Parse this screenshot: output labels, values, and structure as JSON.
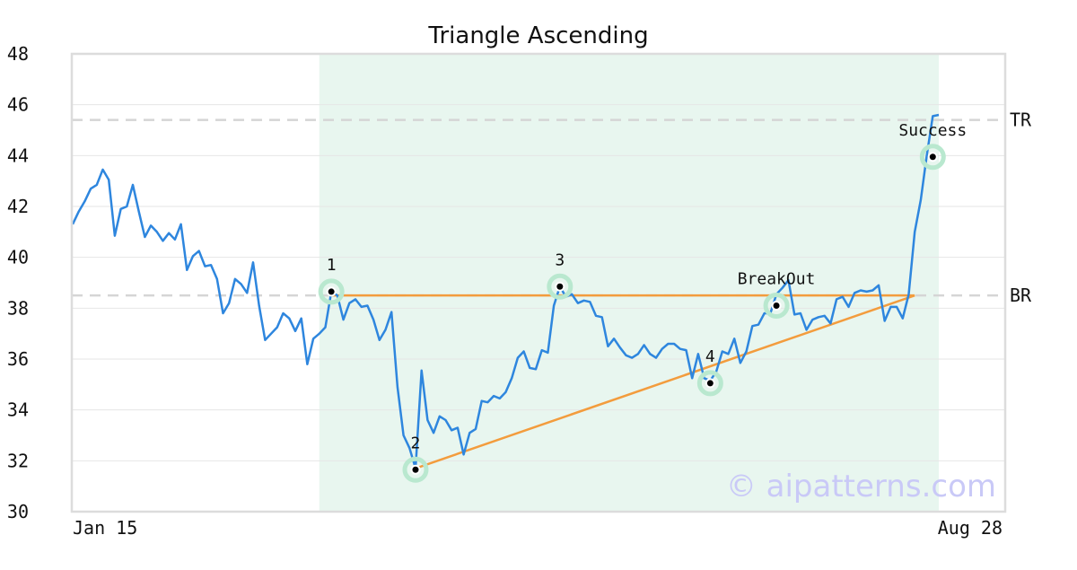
{
  "chart_data": {
    "type": "line",
    "title": "Triangle Ascending",
    "x_tick_labels": [
      "Jan 15",
      "Aug 28"
    ],
    "ylim": [
      30,
      48
    ],
    "y_ticks": [
      30,
      32,
      34,
      36,
      38,
      40,
      42,
      44,
      46,
      48
    ],
    "grid": true,
    "line_color": "#2e86de",
    "trendline_color": "#f39c3d",
    "highlight_color": "#e8f6ef",
    "series": [
      {
        "values": [
          41.3,
          41.8,
          42.2,
          42.7,
          42.85,
          43.45,
          43.05,
          40.85,
          41.9,
          42.0,
          42.85,
          41.8,
          40.8,
          41.25,
          41.0,
          40.65,
          40.95,
          40.7,
          41.3,
          39.5,
          40.05,
          40.25,
          39.65,
          39.7,
          39.15,
          37.8,
          38.2,
          39.15,
          38.95,
          38.6,
          39.8,
          38.1,
          36.75,
          37.0,
          37.25,
          37.8,
          37.6,
          37.1,
          37.6,
          35.8,
          36.8,
          37.0,
          37.25,
          38.65,
          38.5,
          37.55,
          38.2,
          38.35,
          38.05,
          38.1,
          37.55,
          36.75,
          37.15,
          37.85,
          34.9,
          33.0,
          32.5,
          31.7,
          35.55,
          33.6,
          33.1,
          33.75,
          33.6,
          33.2,
          33.3,
          32.25,
          33.1,
          33.25,
          34.35,
          34.3,
          34.55,
          34.45,
          34.7,
          35.25,
          36.05,
          36.3,
          35.65,
          35.6,
          36.35,
          36.25,
          38.1,
          38.85,
          38.45,
          38.55,
          38.2,
          38.3,
          38.25,
          37.7,
          37.65,
          36.5,
          36.8,
          36.45,
          36.15,
          36.05,
          36.2,
          36.55,
          36.2,
          36.05,
          36.4,
          36.6,
          36.6,
          36.4,
          36.35,
          35.25,
          36.2,
          35.25,
          35.15,
          35.5,
          36.3,
          36.2,
          36.8,
          35.85,
          36.3,
          37.3,
          37.35,
          37.8,
          37.8,
          38.55,
          38.8,
          39.1,
          37.75,
          37.8,
          37.15,
          37.55,
          37.65,
          37.7,
          37.4,
          38.35,
          38.45,
          38.05,
          38.6,
          38.7,
          38.65,
          38.7,
          38.9,
          37.5,
          38.05,
          38.05,
          37.6,
          38.55,
          41.0,
          42.25,
          44.0,
          45.55,
          45.6
        ]
      }
    ],
    "horizontal_levels": [
      {
        "label": "TR",
        "value": 45.4
      },
      {
        "label": "BR",
        "value": 38.5
      }
    ],
    "points": [
      {
        "label": "1",
        "index": 43,
        "value": 38.65
      },
      {
        "label": "2",
        "index": 57,
        "value": 31.65
      },
      {
        "label": "3",
        "index": 81,
        "value": 38.85
      },
      {
        "label": "4",
        "index": 106,
        "value": 35.05
      },
      {
        "label": "BreakOut",
        "index": 117,
        "value": 38.1
      },
      {
        "label": "Success",
        "index": 143,
        "value": 43.95
      }
    ],
    "trendlines": [
      {
        "from": [
          43,
          38.5
        ],
        "to": [
          140,
          38.5
        ]
      },
      {
        "from": [
          57,
          31.7
        ],
        "to": [
          140,
          38.5
        ]
      }
    ],
    "highlight_range": [
      41,
      144
    ],
    "watermark": "© aipatterns.com"
  }
}
